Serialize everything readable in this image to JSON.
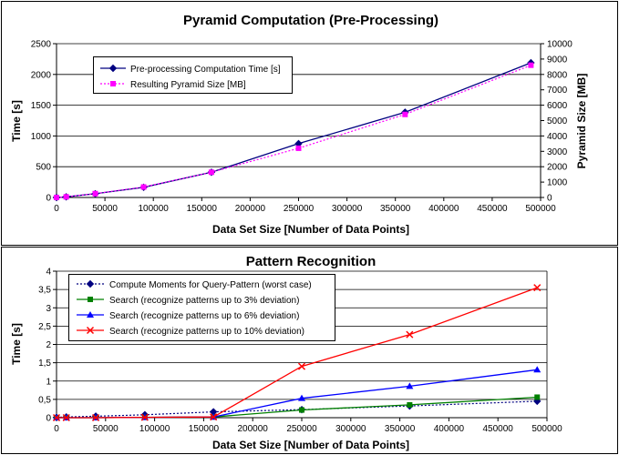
{
  "chart_data": [
    {
      "type": "line",
      "title": "Pyramid Computation (Pre-Processing)",
      "xlabel": "Data Set Size [Number of Data Points]",
      "ylabel": "Time [s]",
      "y2label": "Pyramid Size [MB]",
      "xlim": [
        0,
        500000
      ],
      "ylim": [
        0,
        2500
      ],
      "y2lim": [
        0,
        10000
      ],
      "x_ticks": [
        "0",
        "50000",
        "100000",
        "150000",
        "200000",
        "250000",
        "300000",
        "350000",
        "400000",
        "450000",
        "500000"
      ],
      "y_ticks": [
        "0",
        "500",
        "1000",
        "1500",
        "2000",
        "2500"
      ],
      "y2_ticks": [
        "0",
        "1000",
        "2000",
        "3000",
        "4000",
        "5000",
        "6000",
        "7000",
        "8000",
        "9000",
        "10000"
      ],
      "grid": true,
      "legend_position": "top-left",
      "series": [
        {
          "name": "Pre-processing Computation Time [s]",
          "axis": "left",
          "color": "#000080",
          "line_style": "solid",
          "marker": "diamond",
          "x": [
            0,
            10000,
            40000,
            90000,
            160000,
            250000,
            360000,
            490000
          ],
          "y": [
            0,
            10,
            60,
            165,
            410,
            875,
            1385,
            2190
          ]
        },
        {
          "name": "Resulting Pyramid Size [MB]",
          "axis": "right",
          "color": "#ff00ff",
          "line_style": "dotted",
          "marker": "square",
          "x": [
            0,
            10000,
            40000,
            90000,
            160000,
            250000,
            360000,
            490000
          ],
          "y": [
            0,
            40,
            250,
            680,
            1640,
            3200,
            5400,
            8600
          ]
        }
      ]
    },
    {
      "type": "line",
      "title": "Pattern Recognition",
      "xlabel": "Data Set Size [Number of Data Points]",
      "ylabel": "Time [s]",
      "xlim": [
        0,
        500000
      ],
      "ylim": [
        0,
        4
      ],
      "x_ticks": [
        "0",
        "50000",
        "100000",
        "150000",
        "200000",
        "250000",
        "300000",
        "350000",
        "400000",
        "450000",
        "500000"
      ],
      "y_ticks": [
        "0",
        "0,5",
        "1",
        "1,5",
        "2",
        "2,5",
        "3",
        "3,5",
        "4"
      ],
      "grid": true,
      "legend_position": "top-left",
      "series": [
        {
          "name": "Compute Moments for Query-Pattern (worst case)",
          "color": "#000080",
          "line_style": "dotted",
          "marker": "diamond",
          "x": [
            0,
            10000,
            40000,
            90000,
            160000,
            250000,
            360000,
            490000
          ],
          "y": [
            0.01,
            0.02,
            0.04,
            0.08,
            0.16,
            0.22,
            0.32,
            0.45
          ]
        },
        {
          "name": "Search (recognize patterns up to 3% deviation)",
          "color": "#008000",
          "line_style": "solid",
          "marker": "square",
          "x": [
            0,
            10000,
            40000,
            90000,
            160000,
            250000,
            360000,
            490000
          ],
          "y": [
            0,
            0,
            0,
            0.01,
            0.02,
            0.21,
            0.35,
            0.56
          ]
        },
        {
          "name": "Search (recognize patterns up to 6% deviation)",
          "color": "#0000ff",
          "line_style": "solid",
          "marker": "triangle",
          "x": [
            0,
            10000,
            40000,
            90000,
            160000,
            250000,
            360000,
            490000
          ],
          "y": [
            0,
            0,
            0,
            0.01,
            0.02,
            0.53,
            0.86,
            1.31
          ]
        },
        {
          "name": "Search (recognize patterns up to 10% deviation)",
          "color": "#ff0000",
          "line_style": "solid",
          "marker": "x",
          "x": [
            0,
            10000,
            40000,
            90000,
            160000,
            250000,
            360000,
            490000
          ],
          "y": [
            0,
            0,
            0,
            0.01,
            0.02,
            1.4,
            2.27,
            3.55
          ]
        }
      ]
    }
  ]
}
